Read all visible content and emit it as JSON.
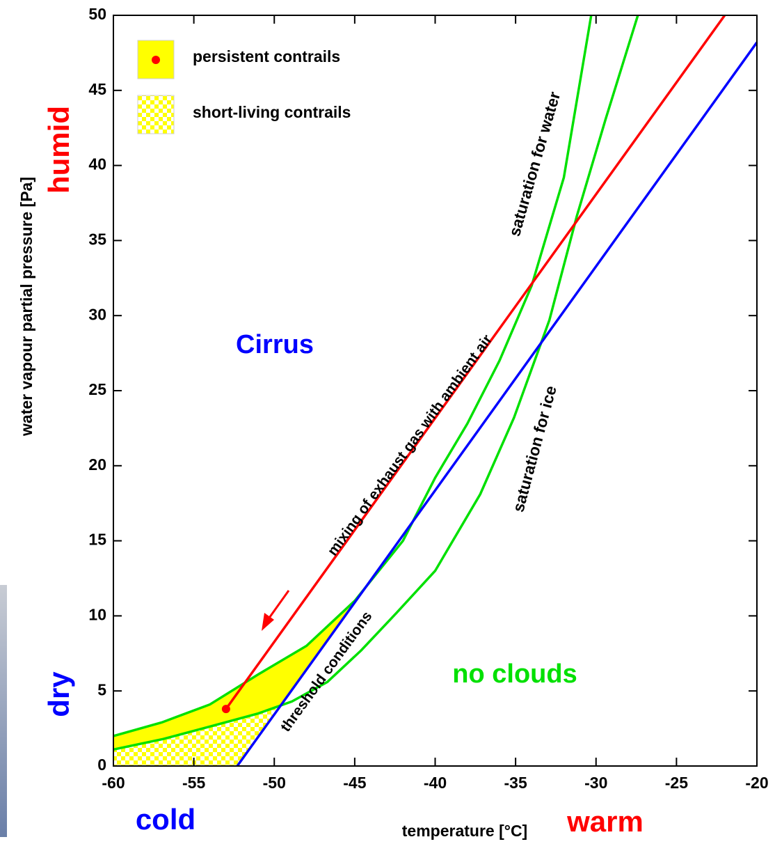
{
  "chart_data": {
    "type": "line",
    "xlabel": "temperature [°C]",
    "ylabel": "water vapour partial pressure [Pa]",
    "xlim": [
      -60,
      -20
    ],
    "ylim": [
      0,
      50
    ],
    "xticks": [
      -60,
      -55,
      -50,
      -45,
      -40,
      -35,
      -30,
      -25,
      -20
    ],
    "yticks": [
      0,
      5,
      10,
      15,
      20,
      25,
      30,
      35,
      40,
      45,
      50
    ],
    "legend": [
      "persistent contrails",
      "short-living contrails"
    ],
    "annotations": [
      "Cirrus",
      "no clouds",
      "humid",
      "dry",
      "cold",
      "warm"
    ],
    "series": [
      {
        "name": "mixing of exhaust gas with ambient air",
        "color": "#ff0000",
        "x": [
          -53,
          -22
        ],
        "values": [
          3.8,
          50
        ]
      },
      {
        "name": "threshold conditions",
        "color": "#0000ff",
        "x": [
          -52.3,
          -20
        ],
        "values": [
          0,
          48.2
        ]
      },
      {
        "name": "saturation for water",
        "color": "#00e000",
        "x": [
          -60,
          -57,
          -54,
          -51,
          -48,
          -45,
          -42,
          -40,
          -38,
          -36,
          -34,
          -32,
          -30.3
        ],
        "values": [
          2.0,
          2.9,
          4.1,
          6.1,
          8.0,
          11.0,
          15.0,
          19.2,
          22.8,
          27.0,
          32.0,
          39.2,
          50
        ]
      },
      {
        "name": "saturation for ice",
        "color": "#00e000",
        "x": [
          -60,
          -56.9,
          -54.1,
          -51,
          -48.9,
          -46.7,
          -44.6,
          -42.4,
          -40,
          -37.2,
          -35.1,
          -32.9,
          -31.2,
          -29.4,
          -27.4
        ],
        "values": [
          1.1,
          1.8,
          2.6,
          3.5,
          4.3,
          5.6,
          7.7,
          10.2,
          13.0,
          18.1,
          23.2,
          29.7,
          36.6,
          43.1,
          50
        ]
      }
    ]
  }
}
